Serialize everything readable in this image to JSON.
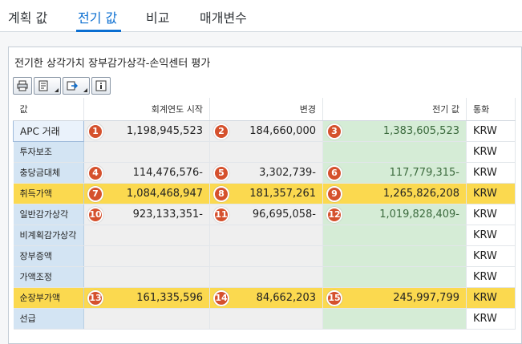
{
  "tabs": [
    {
      "label": "계획 값"
    },
    {
      "label": "전기 값"
    },
    {
      "label": "비교"
    },
    {
      "label": "매개변수"
    }
  ],
  "panel": {
    "title": "전기한 상각가치 장부감가상각-손익센터 평가"
  },
  "toolbar": {
    "icons": [
      "print-icon",
      "layout-icon",
      "export-icon",
      "info-icon"
    ]
  },
  "table": {
    "headers": [
      "값",
      "회계연도 시작",
      "변경",
      "전기 값",
      "통화"
    ],
    "rows": [
      {
        "label": "APC 거래",
        "start": "1,198,945,523",
        "change": "184,660,000",
        "posted": "1,383,605,523",
        "currency": "KRW",
        "badges": [
          "1",
          "2",
          "3"
        ]
      },
      {
        "label": "투자보조",
        "start": "",
        "change": "",
        "posted": "",
        "currency": "KRW",
        "badges": []
      },
      {
        "label": "충당금대체",
        "start": "114,476,576-",
        "change": "3,302,739-",
        "posted": "117,779,315-",
        "currency": "KRW",
        "badges": [
          "4",
          "5",
          "6"
        ]
      },
      {
        "label": "취득가액",
        "start": "1,084,468,947",
        "change": "181,357,261",
        "posted": "1,265,826,208",
        "currency": "KRW",
        "badges": [
          "7",
          "8",
          "9"
        ],
        "highlight": true
      },
      {
        "label": "일반감가상각",
        "start": "923,133,351-",
        "change": "96,695,058-",
        "posted": "1,019,828,409-",
        "currency": "KRW",
        "badges": [
          "10",
          "11",
          "12"
        ]
      },
      {
        "label": "비계획감가상각",
        "start": "",
        "change": "",
        "posted": "",
        "currency": "KRW",
        "badges": []
      },
      {
        "label": "장부증액",
        "start": "",
        "change": "",
        "posted": "",
        "currency": "KRW",
        "badges": []
      },
      {
        "label": "가액조정",
        "start": "",
        "change": "",
        "posted": "",
        "currency": "KRW",
        "badges": []
      },
      {
        "label": "순장부가액",
        "start": "161,335,596",
        "change": "84,662,203",
        "posted": "245,997,799",
        "currency": "KRW",
        "badges": [
          "13",
          "14",
          "15"
        ],
        "highlight": true
      },
      {
        "label": "선급",
        "start": "",
        "change": "",
        "posted": "",
        "currency": "KRW",
        "badges": []
      }
    ]
  },
  "colors": {
    "accent": "#0a6ed1",
    "highlight": "#fbd94f",
    "posted_cell": "#d5ecd6",
    "key_cell": "#d3e4f3",
    "badge": "#d5512d"
  }
}
